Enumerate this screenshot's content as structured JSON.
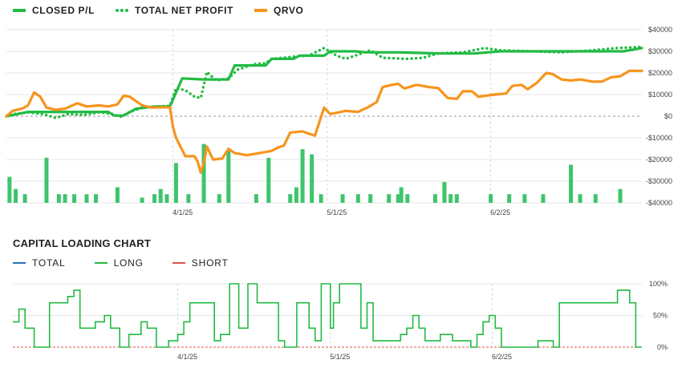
{
  "chart_data": [
    {
      "type": "line",
      "title": "",
      "legend": [
        "CLOSED P/L",
        "TOTAL NET PROFIT",
        "QRVO"
      ],
      "legend_placement": "top-left",
      "grid": true,
      "x_ticks": [
        {
          "label": "4/1/25",
          "x": 54
        },
        {
          "label": "5/1/25",
          "x": 104
        },
        {
          "label": "6/2/25",
          "x": 157
        }
      ],
      "x_range": [
        0,
        206
      ],
      "ylim": [
        -40000,
        40000
      ],
      "y_ticks": [
        {
          "label": "$40000",
          "value": 40000
        },
        {
          "label": "$30000",
          "value": 30000
        },
        {
          "label": "$20000",
          "value": 20000
        },
        {
          "label": "$10000",
          "value": 10000
        },
        {
          "label": "$0",
          "value": 0
        },
        {
          "label": "-$10000",
          "value": -10000
        },
        {
          "label": "-$20000",
          "value": -20000
        },
        {
          "label": "-$30000",
          "value": -30000
        },
        {
          "label": "-$40000",
          "value": -40000
        }
      ],
      "series": [
        {
          "name": "CLOSED P/L",
          "color": "#22bb44",
          "style": "solid",
          "points": [
            [
              0,
              0
            ],
            [
              3,
              800
            ],
            [
              7,
              2000
            ],
            [
              17,
              2000
            ],
            [
              33,
              2000
            ],
            [
              35,
              300
            ],
            [
              38,
              300
            ],
            [
              42,
              3500
            ],
            [
              48,
              4500
            ],
            [
              53,
              4500
            ],
            [
              57,
              17500
            ],
            [
              64,
              17000
            ],
            [
              72,
              17000
            ],
            [
              74,
              23500
            ],
            [
              84,
              23500
            ],
            [
              86,
              26500
            ],
            [
              93,
              26500
            ],
            [
              95,
              28000
            ],
            [
              103,
              28000
            ],
            [
              105,
              30000
            ],
            [
              113,
              30000
            ],
            [
              117,
              29500
            ],
            [
              127,
              29500
            ],
            [
              140,
              29000
            ],
            [
              152,
              29000
            ],
            [
              160,
              30000
            ],
            [
              175,
              30000
            ],
            [
              200,
              30000
            ],
            [
              206,
              31500
            ]
          ]
        },
        {
          "name": "TOTAL NET PROFIT",
          "color": "#22bb44",
          "style": "dotted",
          "points": [
            [
              0,
              0
            ],
            [
              3,
              1200
            ],
            [
              7,
              1800
            ],
            [
              12,
              1000
            ],
            [
              16,
              -800
            ],
            [
              20,
              1000
            ],
            [
              25,
              600
            ],
            [
              30,
              1800
            ],
            [
              34,
              1200
            ],
            [
              37,
              -200
            ],
            [
              40,
              2000
            ],
            [
              44,
              4000
            ],
            [
              49,
              4500
            ],
            [
              53,
              4800
            ],
            [
              55,
              13000
            ],
            [
              58,
              12000
            ],
            [
              61,
              9000
            ],
            [
              63,
              8500
            ],
            [
              65,
              20500
            ],
            [
              68,
              16500
            ],
            [
              72,
              17500
            ],
            [
              75,
              21500
            ],
            [
              80,
              24000
            ],
            [
              84,
              24500
            ],
            [
              86,
              26500
            ],
            [
              93,
              27500
            ],
            [
              98,
              28000
            ],
            [
              103,
              31500
            ],
            [
              107,
              28000
            ],
            [
              110,
              26500
            ],
            [
              114,
              28500
            ],
            [
              118,
              30500
            ],
            [
              122,
              27000
            ],
            [
              130,
              26500
            ],
            [
              135,
              27000
            ],
            [
              140,
              29000
            ],
            [
              148,
              29500
            ],
            [
              155,
              31500
            ],
            [
              160,
              30500
            ],
            [
              170,
              30000
            ],
            [
              180,
              29500
            ],
            [
              190,
              30500
            ],
            [
              198,
              31500
            ],
            [
              206,
              32000
            ]
          ]
        },
        {
          "name": "QRVO",
          "color": "#f7941d",
          "style": "solid",
          "points": [
            [
              0,
              0
            ],
            [
              2,
              2500
            ],
            [
              5,
              3500
            ],
            [
              7,
              5000
            ],
            [
              9,
              11000
            ],
            [
              11,
              9000
            ],
            [
              13,
              4000
            ],
            [
              16,
              3000
            ],
            [
              19,
              3500
            ],
            [
              23,
              6000
            ],
            [
              26,
              4500
            ],
            [
              30,
              5000
            ],
            [
              33,
              4500
            ],
            [
              36,
              5500
            ],
            [
              38,
              9500
            ],
            [
              40,
              9000
            ],
            [
              44,
              5000
            ],
            [
              47,
              4000
            ],
            [
              53,
              4200
            ],
            [
              54,
              -5000
            ],
            [
              55,
              -10000
            ],
            [
              58,
              -18500
            ],
            [
              61,
              -18500
            ],
            [
              62,
              -21000
            ],
            [
              63,
              -26000
            ],
            [
              64,
              -21500
            ],
            [
              65,
              -14000
            ],
            [
              67,
              -20000
            ],
            [
              70,
              -19500
            ],
            [
              72,
              -15000
            ],
            [
              74,
              -17000
            ],
            [
              78,
              -18000
            ],
            [
              82,
              -17000
            ],
            [
              86,
              -16000
            ],
            [
              88,
              -14500
            ],
            [
              90,
              -13500
            ],
            [
              92,
              -7500
            ],
            [
              96,
              -7000
            ],
            [
              100,
              -9000
            ],
            [
              103,
              4000
            ],
            [
              105,
              1000
            ],
            [
              110,
              2500
            ],
            [
              114,
              2000
            ],
            [
              117,
              4000
            ],
            [
              120,
              6500
            ],
            [
              122,
              13500
            ],
            [
              125,
              14500
            ],
            [
              127,
              15000
            ],
            [
              129,
              12800
            ],
            [
              133,
              14500
            ],
            [
              137,
              13500
            ],
            [
              140,
              13000
            ],
            [
              143,
              8500
            ],
            [
              146,
              8000
            ],
            [
              148,
              11500
            ],
            [
              151,
              11500
            ],
            [
              153,
              9000
            ],
            [
              158,
              10000
            ],
            [
              162,
              10500
            ],
            [
              164,
              14000
            ],
            [
              167,
              14500
            ],
            [
              169,
              12500
            ],
            [
              172,
              15500
            ],
            [
              175,
              20000
            ],
            [
              177,
              19500
            ],
            [
              180,
              17000
            ],
            [
              183,
              16500
            ],
            [
              186,
              17000
            ],
            [
              190,
              16000
            ],
            [
              193,
              16000
            ],
            [
              196,
              18000
            ],
            [
              199,
              18500
            ],
            [
              202,
              21000
            ],
            [
              206,
              21000
            ]
          ]
        }
      ],
      "bars": {
        "color": "#3ec46d",
        "positions": [
          1,
          3,
          6,
          13,
          17,
          19,
          22,
          26,
          29,
          36,
          44,
          48,
          50,
          52,
          55,
          59,
          64,
          69,
          72,
          81,
          85,
          92,
          94,
          96,
          99,
          102,
          109,
          114,
          118,
          124,
          127,
          128,
          130,
          139,
          142,
          144,
          146,
          157,
          163,
          168,
          174,
          183,
          186,
          191,
          199
        ],
        "heights": [
          0.15,
          0.08,
          0.05,
          0.26,
          0.05,
          0.05,
          0.05,
          0.05,
          0.05,
          0.09,
          0.03,
          0.05,
          0.08,
          0.05,
          0.23,
          0.05,
          0.34,
          0.05,
          0.3,
          0.05,
          0.26,
          0.05,
          0.09,
          0.31,
          0.28,
          0.05,
          0.05,
          0.05,
          0.05,
          0.05,
          0.05,
          0.09,
          0.05,
          0.05,
          0.12,
          0.05,
          0.05,
          0.05,
          0.05,
          0.05,
          0.05,
          0.22,
          0.05,
          0.05,
          0.08
        ]
      }
    },
    {
      "type": "line",
      "title": "CAPITAL LOADING CHART",
      "legend": [
        "TOTAL",
        "LONG",
        "SHORT"
      ],
      "legend_placement": "top-left",
      "grid": true,
      "x_ticks": [
        {
          "label": "4/1/25",
          "x": 54
        },
        {
          "label": "5/1/25",
          "x": 104
        },
        {
          "label": "6/2/25",
          "x": 157
        }
      ],
      "x_range": [
        0,
        206
      ],
      "ylim": [
        0,
        100
      ],
      "y_ticks": [
        {
          "label": "100%",
          "value": 100
        },
        {
          "label": "50%",
          "value": 50
        },
        {
          "label": "0%",
          "value": 0
        }
      ],
      "series": [
        {
          "name": "TOTAL",
          "color": "#2a6ebb",
          "values": []
        },
        {
          "name": "LONG",
          "color": "#22bb44",
          "steps": [
            [
              0,
              40
            ],
            [
              2,
              60
            ],
            [
              4,
              30
            ],
            [
              7,
              0
            ],
            [
              12,
              70
            ],
            [
              18,
              80
            ],
            [
              20,
              90
            ],
            [
              22,
              30
            ],
            [
              25,
              30
            ],
            [
              27,
              40
            ],
            [
              30,
              50
            ],
            [
              32,
              30
            ],
            [
              35,
              0
            ],
            [
              38,
              20
            ],
            [
              42,
              40
            ],
            [
              44,
              30
            ],
            [
              47,
              0
            ],
            [
              49,
              0
            ],
            [
              51,
              10
            ],
            [
              54,
              20
            ],
            [
              56,
              40
            ],
            [
              58,
              70
            ],
            [
              66,
              10
            ],
            [
              68,
              20
            ],
            [
              71,
              100
            ],
            [
              74,
              30
            ],
            [
              77,
              100
            ],
            [
              80,
              70
            ],
            [
              87,
              10
            ],
            [
              89,
              0
            ],
            [
              93,
              70
            ],
            [
              97,
              30
            ],
            [
              99,
              10
            ],
            [
              101,
              100
            ],
            [
              104,
              30
            ],
            [
              105,
              70
            ],
            [
              107,
              100
            ],
            [
              114,
              30
            ],
            [
              116,
              70
            ],
            [
              118,
              10
            ],
            [
              127,
              20
            ],
            [
              129,
              30
            ],
            [
              131,
              50
            ],
            [
              133,
              30
            ],
            [
              135,
              10
            ],
            [
              140,
              20
            ],
            [
              144,
              10
            ],
            [
              150,
              0
            ],
            [
              152,
              20
            ],
            [
              154,
              40
            ],
            [
              156,
              50
            ],
            [
              158,
              30
            ],
            [
              160,
              0
            ],
            [
              170,
              0
            ],
            [
              172,
              10
            ],
            [
              177,
              0
            ],
            [
              179,
              70
            ],
            [
              198,
              90
            ],
            [
              202,
              70
            ],
            [
              204,
              0
            ]
          ]
        },
        {
          "name": "SHORT",
          "color": "#d9534f",
          "values": []
        }
      ]
    }
  ]
}
